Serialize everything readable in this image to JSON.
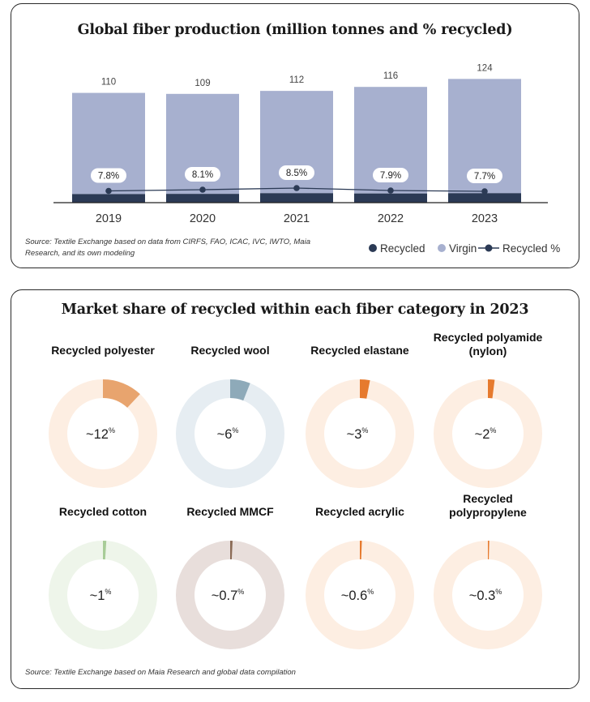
{
  "colors": {
    "recycled": "#2b3a55",
    "virgin": "#a7b0cf",
    "line": "#2b3a55"
  },
  "fiber_chart": {
    "title": "Global fiber production (million tonnes and % recycled)",
    "source": "Source: Textile Exchange based on data from CIRFS, FAO, ICAC, IVC, IWTO, Maia Research, and its own modeling",
    "legend": {
      "recycled": "Recycled",
      "virgin": "Virgin",
      "recycled_pct": "Recycled %"
    }
  },
  "donut_panel": {
    "title": "Market share of recycled within each fiber category in 2023",
    "source": "Source: Textile Exchange based on Maia Research and global data compilation"
  },
  "chart_data": [
    {
      "type": "bar",
      "title": "Global fiber production (million tonnes and % recycled)",
      "categories": [
        "2019",
        "2020",
        "2021",
        "2022",
        "2023"
      ],
      "series": [
        {
          "name": "Recycled",
          "values": [
            8.6,
            8.8,
            9.5,
            9.2,
            9.5
          ]
        },
        {
          "name": "Virgin",
          "values": [
            101.4,
            100.2,
            102.5,
            106.8,
            114.5
          ]
        }
      ],
      "totals": [
        110,
        109,
        112,
        116,
        124
      ],
      "total_labels": [
        "110",
        "109",
        "112",
        "116",
        "124"
      ],
      "line": {
        "name": "Recycled %",
        "values": [
          7.8,
          8.1,
          8.5,
          7.9,
          7.7
        ],
        "labels": [
          "7.8%",
          "8.1%",
          "8.5%",
          "7.9%",
          "7.7%"
        ]
      },
      "stacked": true,
      "ylim": [
        0,
        130
      ],
      "legend_position": "bottom-right",
      "grid": false
    },
    {
      "type": "pie",
      "variant": "donut",
      "title": "Market share of recycled within each fiber category in 2023",
      "items": [
        {
          "name": "Recycled polyester",
          "value": 12,
          "label": "~12",
          "color": "#e8a46e",
          "bg": "#fdeee2"
        },
        {
          "name": "Recycled wool",
          "value": 6,
          "label": "~6",
          "color": "#8eaab9",
          "bg": "#e6edf2"
        },
        {
          "name": "Recycled elastane",
          "value": 3,
          "label": "~3",
          "color": "#e67a2e",
          "bg": "#fdeee2"
        },
        {
          "name": "Recycled polyamide (nylon)",
          "value": 2,
          "label": "~2",
          "color": "#e67a2e",
          "bg": "#fdeee2"
        },
        {
          "name": "Recycled cotton",
          "value": 1,
          "label": "~1",
          "color": "#a8cc98",
          "bg": "#eef5ea"
        },
        {
          "name": "Recycled MMCF",
          "value": 0.7,
          "label": "~0.7",
          "color": "#8a6a55",
          "bg": "#e8dedb"
        },
        {
          "name": "Recycled acrylic",
          "value": 0.6,
          "label": "~0.6",
          "color": "#e67a2e",
          "bg": "#fdeee2"
        },
        {
          "name": "Recycled polypropylene",
          "value": 0.3,
          "label": "~0.3",
          "color": "#e67a2e",
          "bg": "#fdeee2"
        }
      ],
      "unit": "%"
    }
  ]
}
